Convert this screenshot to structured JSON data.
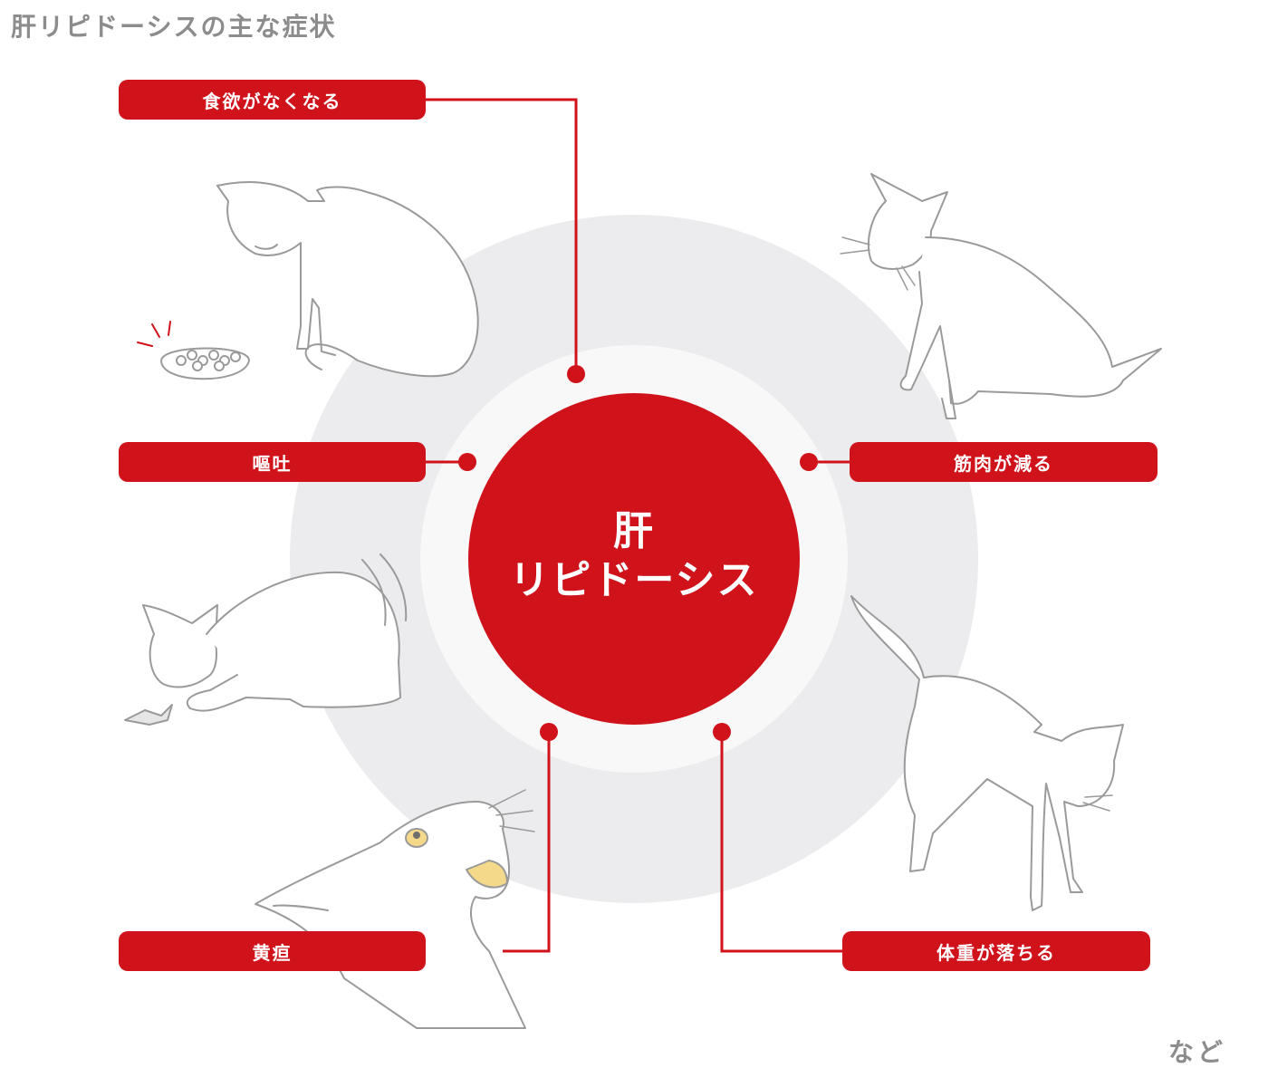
{
  "title": "肝リピドーシスの主な症状",
  "center": {
    "line1": "肝",
    "line2": "リピドーシス"
  },
  "symptoms": {
    "appetite": "食欲がなくなる",
    "vomiting": "嘔吐",
    "jaundice": "黄疸",
    "muscle": "筋肉が減る",
    "weight": "体重が落ちる"
  },
  "footnote": "など",
  "colors": {
    "accent": "#d0121b",
    "outer_ring": "#ececee",
    "inner_ring": "#f8f8f8",
    "illustration_stroke": "#9a9a9a",
    "title_text": "#8c8c8c"
  },
  "icons": [
    "cat-with-food-bowl",
    "cat-sitting-thin",
    "cat-vomiting",
    "cat-walking-thin",
    "cat-yellow-eye-jaundice"
  ]
}
